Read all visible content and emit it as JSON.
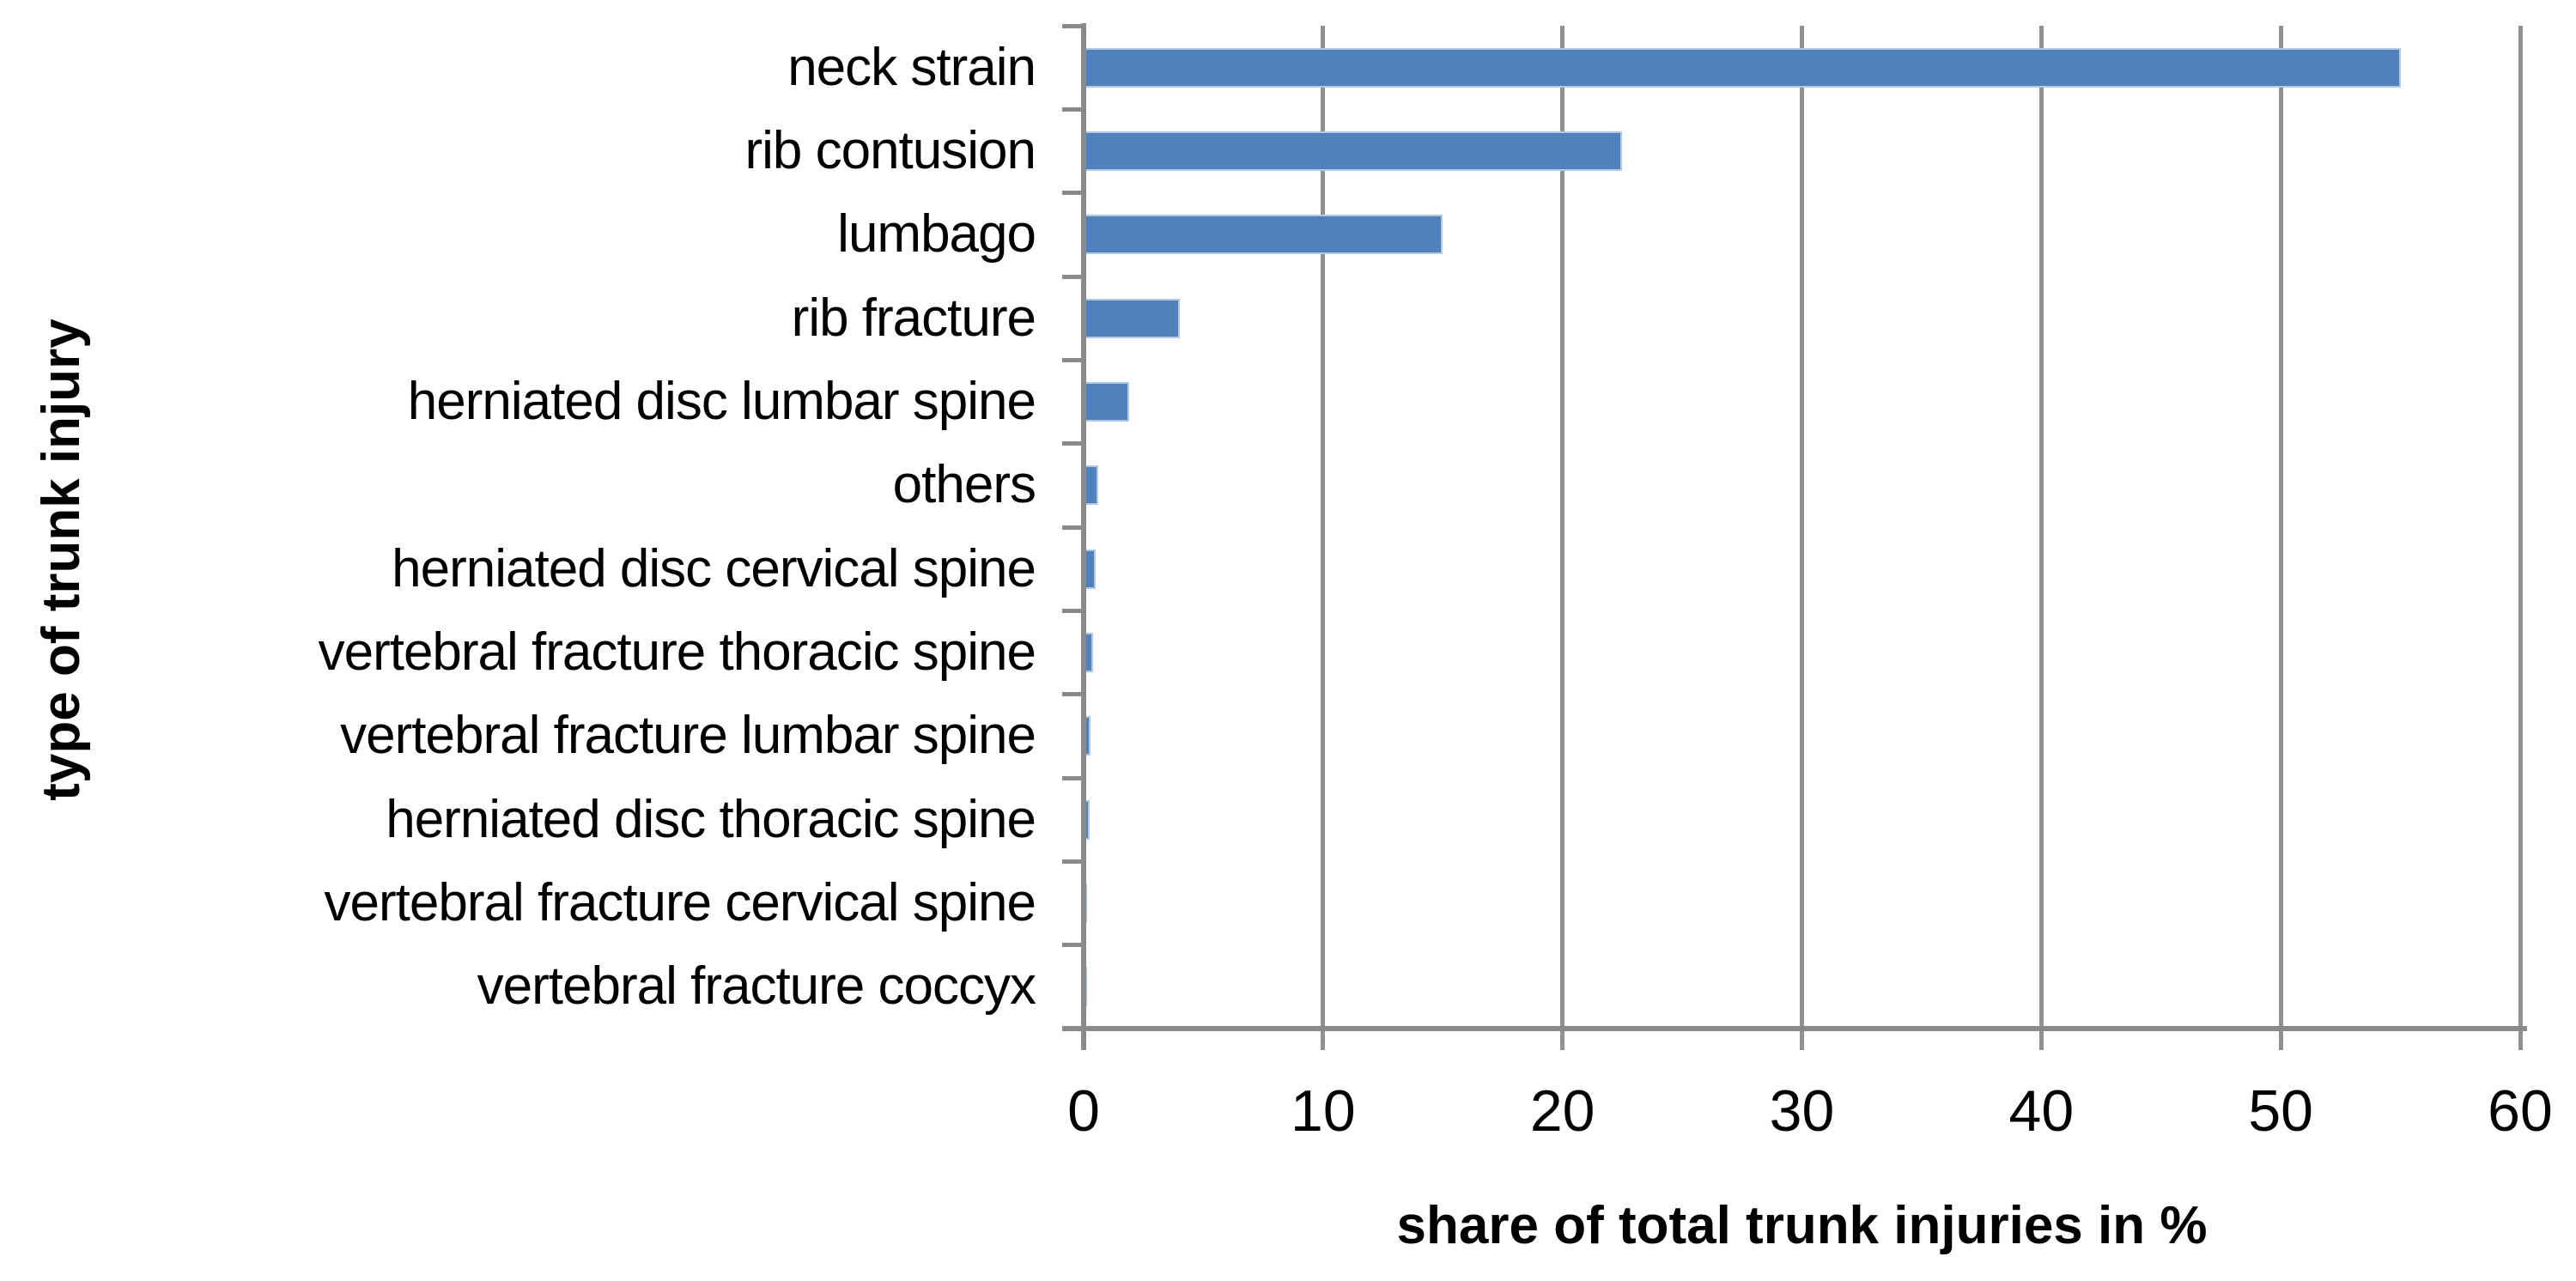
{
  "chart_data": {
    "type": "bar",
    "orientation": "horizontal",
    "title": "",
    "xlabel": "share of total trunk injuries in %",
    "ylabel": "type of trunk injury",
    "xlim": [
      0,
      60
    ],
    "xticks": [
      0,
      10,
      20,
      30,
      40,
      50,
      60
    ],
    "grid": true,
    "legend": false,
    "categories": [
      "neck strain",
      "rib contusion",
      "lumbago",
      "rib fracture",
      "herniated disc lumbar spine",
      "others",
      "herniated disc cervical spine",
      "vertebral fracture thoracic spine",
      "vertebral fracture lumbar spine",
      "herniated disc thoracic spine",
      "vertebral fracture cervical spine",
      "vertebral fracture coccyx"
    ],
    "values": [
      55,
      22.5,
      15,
      4,
      1.9,
      0.6,
      0.5,
      0.4,
      0.3,
      0.25,
      0.1,
      0.05
    ],
    "colors": {
      "bar_fill": "#4F81BD",
      "bar_border": "#AFC9E7",
      "gridline": "#919191",
      "axis_line": "#8A8A8A",
      "text": "#000000",
      "background": "#FFFFFF"
    }
  }
}
